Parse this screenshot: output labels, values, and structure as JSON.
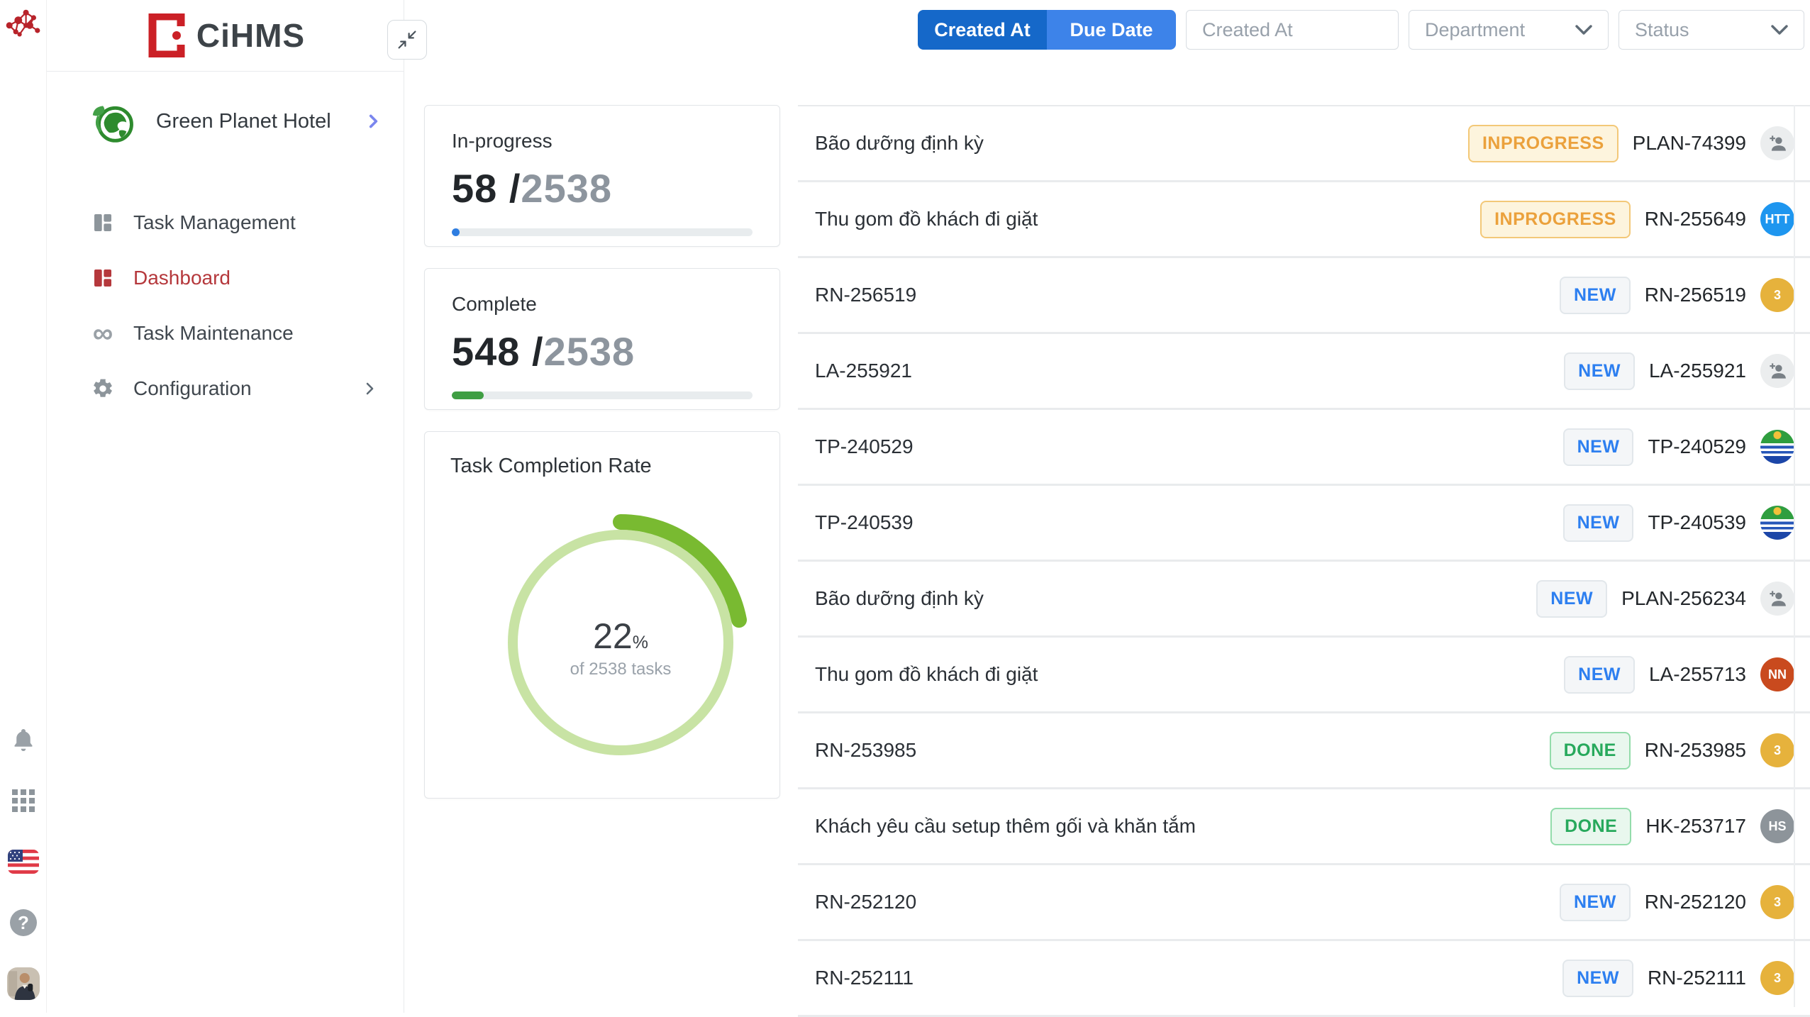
{
  "brand": {
    "name": "CiHMS"
  },
  "sidebar": {
    "hotel": {
      "name": "Green Planet Hotel"
    },
    "items": [
      {
        "label": "Task Management"
      },
      {
        "label": "Dashboard"
      },
      {
        "label": "Task Maintenance"
      },
      {
        "label": "Configuration"
      }
    ]
  },
  "filters": {
    "toggle": [
      {
        "label": "Created At",
        "selected": true,
        "bg": "#1568c9"
      },
      {
        "label": "Due Date",
        "selected": false,
        "bg": "#3d83e9"
      }
    ],
    "date_placeholder": "Created At",
    "department_placeholder": "Department",
    "status_placeholder": "Status"
  },
  "cards": {
    "in_progress": {
      "title": "In-progress",
      "value": "58",
      "separator": " /",
      "total": "2538",
      "fill_percent": 2.5,
      "bar_color": "#2e7de1"
    },
    "complete": {
      "title": "Complete",
      "value": "548",
      "separator": " /",
      "total": "2538",
      "fill_percent": 10.5,
      "bar_color": "#3f9e43"
    },
    "completion": {
      "title": "Task Completion Rate",
      "percent_value": "22",
      "percent_sign": "%",
      "subtitle": "of 2538 tasks"
    }
  },
  "chart_data": [
    {
      "type": "progress",
      "title": "In-progress",
      "value": 58,
      "total": 2538,
      "bar_color": "#2e7de1"
    },
    {
      "type": "progress",
      "title": "Complete",
      "value": 548,
      "total": 2538,
      "bar_color": "#3f9e43"
    },
    {
      "type": "donut",
      "title": "Task Completion Rate",
      "percent": 22,
      "subtitle": "of 2538 tasks",
      "ring_color": "#c8e3a4",
      "arc_color": "#79ba31"
    }
  ],
  "status_styles": {
    "INPROGRESS": {
      "text": "#eba13c",
      "bg": "#fdf4dd",
      "border": "#f3c878"
    },
    "NEW": {
      "text": "#2d7ff0",
      "bg": "#f4f6f8",
      "border": "#e2e7eb"
    },
    "DONE": {
      "text": "#27a95c",
      "bg": "#e9f7ee",
      "border": "#93dcab"
    }
  },
  "tasks": [
    {
      "title": "Bão dưỡng định kỳ",
      "status": "INPROGRESS",
      "id": "PLAN-74399",
      "avatar": {
        "type": "person-add"
      }
    },
    {
      "title": "Thu gom đồ khách đi giặt",
      "status": "INPROGRESS",
      "id": "RN-255649",
      "avatar": {
        "type": "initials",
        "text": "HTT",
        "color": "#1e96ef"
      }
    },
    {
      "title": "RN-256519",
      "status": "NEW",
      "id": "RN-256519",
      "avatar": {
        "type": "initials",
        "text": "3",
        "color": "#e6b23c"
      }
    },
    {
      "title": "LA-255921",
      "status": "NEW",
      "id": "LA-255921",
      "avatar": {
        "type": "person-add"
      }
    },
    {
      "title": "TP-240529",
      "status": "NEW",
      "id": "TP-240529",
      "avatar": {
        "type": "flag"
      }
    },
    {
      "title": "TP-240539",
      "status": "NEW",
      "id": "TP-240539",
      "avatar": {
        "type": "flag"
      }
    },
    {
      "title": "Bão dưỡng định kỳ",
      "status": "NEW",
      "id": "PLAN-256234",
      "avatar": {
        "type": "person-add"
      }
    },
    {
      "title": "Thu gom đồ khách đi giặt",
      "status": "NEW",
      "id": "LA-255713",
      "avatar": {
        "type": "initials",
        "text": "NN",
        "color": "#c94a1e"
      }
    },
    {
      "title": "RN-253985",
      "status": "DONE",
      "id": "RN-253985",
      "avatar": {
        "type": "initials",
        "text": "3",
        "color": "#e6b23c"
      }
    },
    {
      "title": "Khách yêu cầu setup thêm gối và khăn tắm",
      "status": "DONE",
      "id": "HK-253717",
      "avatar": {
        "type": "initials",
        "text": "HS",
        "color": "#8d949a"
      }
    },
    {
      "title": "RN-252120",
      "status": "NEW",
      "id": "RN-252120",
      "avatar": {
        "type": "initials",
        "text": "3",
        "color": "#e6b23c"
      }
    },
    {
      "title": "RN-252111",
      "status": "NEW",
      "id": "RN-252111",
      "avatar": {
        "type": "initials",
        "text": "3",
        "color": "#e6b23c"
      }
    }
  ]
}
